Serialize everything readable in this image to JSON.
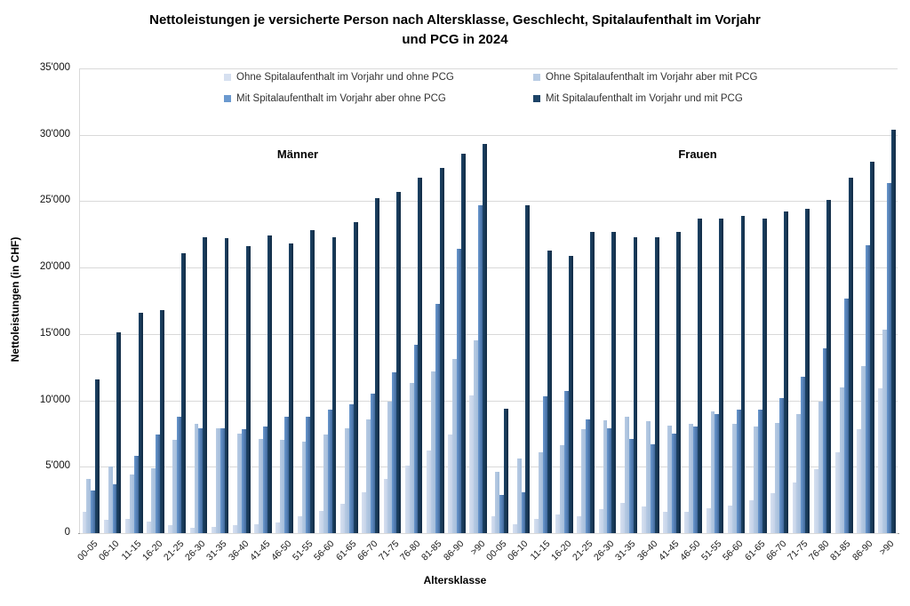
{
  "header": {
    "title_line1": "Nettoleistungen je versicherte Person nach Altersklasse, Geschlecht, Spitalaufenthalt im Vorjahr",
    "title_line2": "und PCG in 2024"
  },
  "chart_data": {
    "type": "bar",
    "title": "Nettoleistungen je versicherte Person nach Altersklasse, Geschlecht, Spitalaufenthalt im Vorjahr und PCG in 2024",
    "xlabel": "Altersklasse",
    "ylabel": "Nettoleistungen (in CHF)",
    "ylim": [
      0,
      35000
    ],
    "ytick_step": 5000,
    "ytick_labels": [
      "0",
      "5'000",
      "10'000",
      "15'000",
      "20'000",
      "25'000",
      "30'000",
      "35'000"
    ],
    "grid": true,
    "legend_position": "top",
    "group_labels": [
      "Männer",
      "Frauen"
    ],
    "categories": [
      "00-05",
      "06-10",
      "11-15",
      "16-20",
      "21-25",
      "26-30",
      "31-35",
      "36-40",
      "41-45",
      "46-50",
      "51-55",
      "56-60",
      "61-65",
      "66-70",
      "71-75",
      "76-80",
      "81-85",
      "86-90",
      ">90",
      "00-05",
      "06-10",
      "11-15",
      "16-20",
      "21-25",
      "26-30",
      "31-35",
      "36-40",
      "41-45",
      "46-50",
      "51-55",
      "56-60",
      "61-65",
      "66-70",
      "71-75",
      "76-80",
      "81-85",
      "86-90",
      ">90"
    ],
    "series": [
      {
        "name": "Ohne Spitalaufenthalt im Vorjahr und ohne PCG",
        "color": "#d6e0f0",
        "color2": "#c4d2e8",
        "values": [
          1600,
          1000,
          1100,
          900,
          600,
          400,
          500,
          600,
          700,
          800,
          1300,
          1700,
          2200,
          3100,
          4100,
          5100,
          6200,
          7400,
          10400,
          1300,
          700,
          1100,
          1400,
          1300,
          1800,
          2300,
          2000,
          1600,
          1600,
          1900,
          2100,
          2500,
          3000,
          3800,
          4800,
          6100,
          7800,
          10900
        ]
      },
      {
        "name": "Ohne Spitalaufenthalt im Vorjahr aber mit PCG",
        "color": "#b8cce4",
        "color2": "#a3bcda",
        "values": [
          4100,
          5000,
          4400,
          4900,
          7000,
          8200,
          7900,
          7500,
          7100,
          7000,
          6900,
          7400,
          7900,
          8600,
          9900,
          11300,
          12200,
          13100,
          14500,
          4600,
          5600,
          6100,
          6600,
          7800,
          8500,
          8800,
          8400,
          8100,
          8200,
          9200,
          8200,
          8000,
          8300,
          9000,
          9900,
          11000,
          12600,
          15300
        ]
      },
      {
        "name": "Mit Spitalaufenthalt im Vorjahr aber ohne PCG",
        "color": "#6b99cf",
        "color2": "#41699c",
        "values": [
          3200,
          3700,
          5800,
          7400,
          8800,
          7900,
          7900,
          7800,
          8000,
          8800,
          8800,
          9300,
          9700,
          10500,
          12100,
          14200,
          17300,
          21400,
          24700,
          2900,
          3100,
          10300,
          10700,
          8600,
          7900,
          7100,
          6700,
          7500,
          8000,
          9000,
          9300,
          9300,
          10200,
          11800,
          13900,
          17700,
          21700,
          26400
        ]
      },
      {
        "name": "Mit Spitalaufenthalt im Vorjahr und mit PCG",
        "color": "#1d4467",
        "color2": "#122c45",
        "values": [
          11600,
          15100,
          16600,
          16800,
          21100,
          22300,
          22200,
          21600,
          22400,
          21800,
          22800,
          22300,
          23400,
          25200,
          25700,
          26800,
          27500,
          28600,
          29300,
          9400,
          24700,
          21300,
          20900,
          22700,
          22700,
          22300,
          22300,
          22700,
          23700,
          23700,
          23900,
          23700,
          24200,
          24400,
          25100,
          26800,
          28000,
          30400
        ]
      }
    ]
  }
}
